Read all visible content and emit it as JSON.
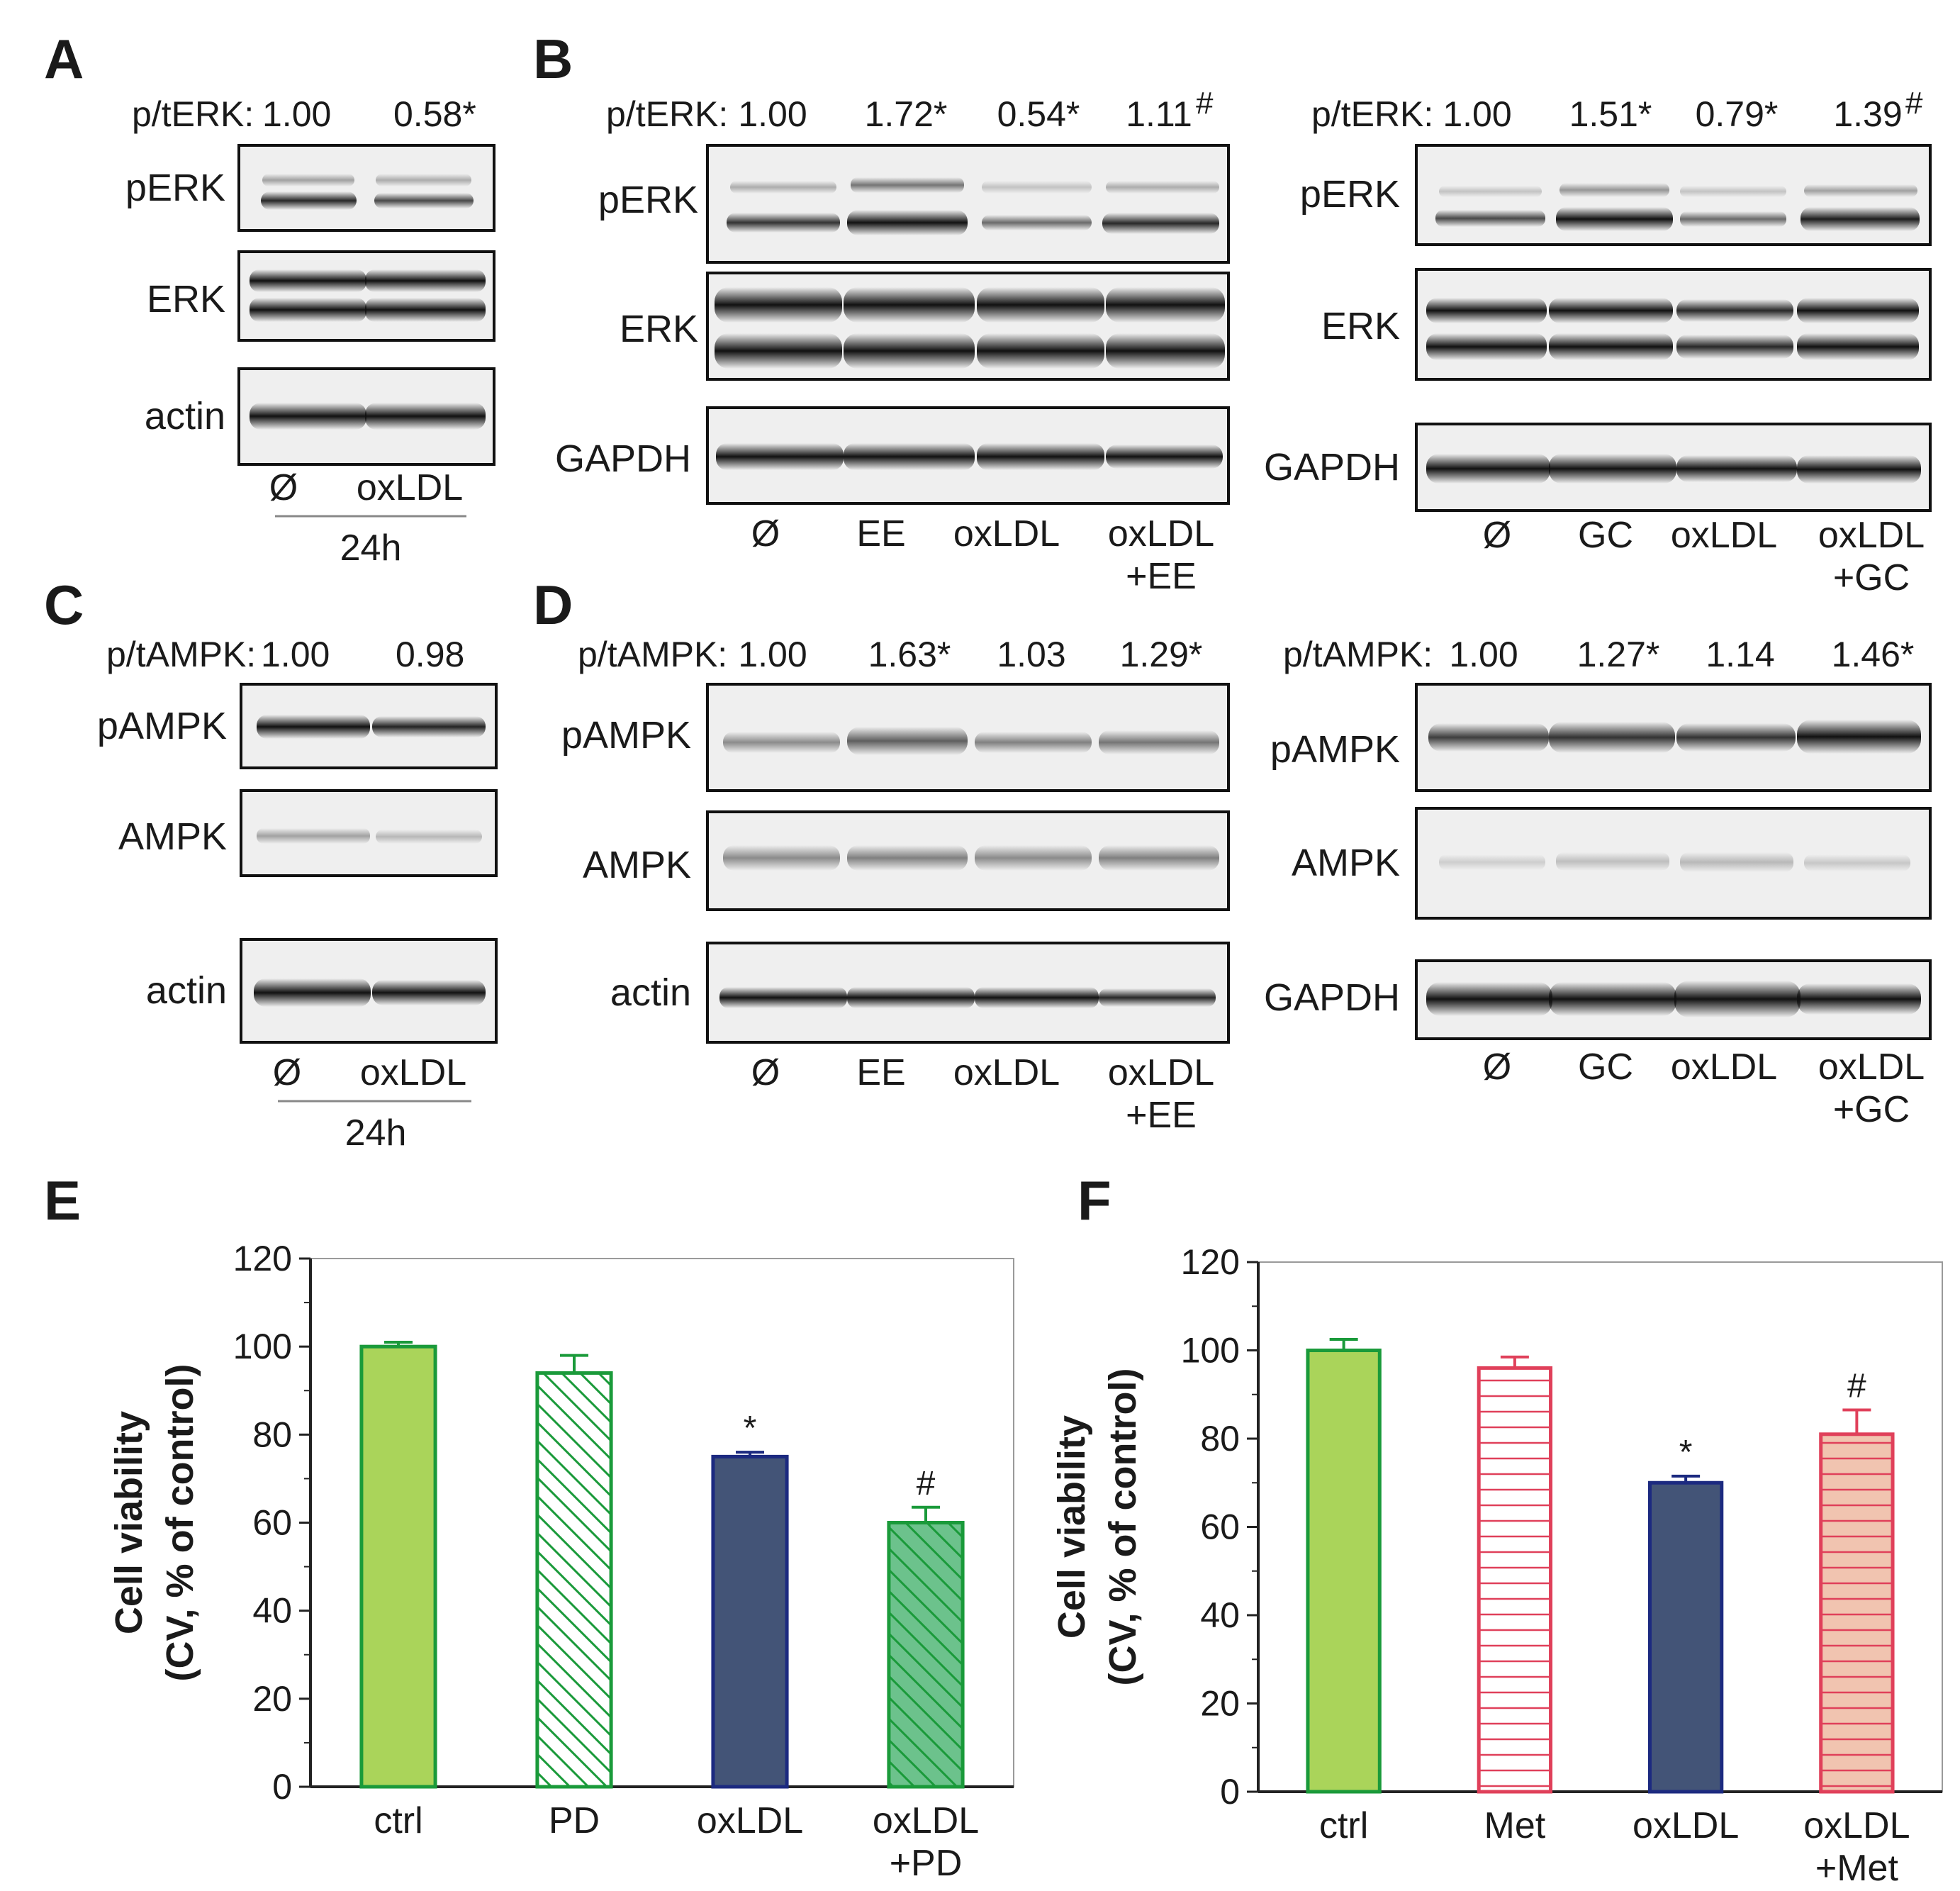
{
  "panel_letters": {
    "A": "A",
    "B": "B",
    "C": "C",
    "D": "D",
    "E": "E",
    "F": "F"
  },
  "blots": {
    "A": {
      "ratio_label": "p/tERK:",
      "ratios": [
        "1.00",
        "0.58*"
      ],
      "rows": [
        "pERK",
        "ERK",
        "actin"
      ],
      "lanes": [
        "Ø",
        "oxLDL"
      ],
      "time": "24h"
    },
    "B_left": {
      "ratio_label": "p/tERK:",
      "ratios": [
        "1.00",
        "1.72*",
        "0.54*",
        "1.11"
      ],
      "rows": [
        "pERK",
        "ERK",
        "GAPDH"
      ],
      "lanes": [
        "Ø",
        "EE",
        "oxLDL",
        "oxLDL",
        "+EE"
      ]
    },
    "B_right": {
      "ratio_label": "p/tERK:",
      "ratios": [
        "1.00",
        "1.51*",
        "0.79*",
        "1.39"
      ],
      "rows": [
        "pERK",
        "ERK",
        "GAPDH"
      ],
      "lanes": [
        "Ø",
        "GC",
        "oxLDL",
        "oxLDL",
        "+GC"
      ]
    },
    "C": {
      "ratio_label": "p/tAMPK:",
      "ratios": [
        "1.00",
        "0.98"
      ],
      "rows": [
        "pAMPK",
        "AMPK",
        "actin"
      ],
      "lanes": [
        "Ø",
        "oxLDL"
      ],
      "time": "24h"
    },
    "D_left": {
      "ratio_label": "p/tAMPK:",
      "ratios": [
        "1.00",
        "1.63*",
        "1.03",
        "1.29*"
      ],
      "rows": [
        "pAMPK",
        "AMPK",
        "actin"
      ],
      "lanes": [
        "Ø",
        "EE",
        "oxLDL",
        "oxLDL",
        "+EE"
      ]
    },
    "D_right": {
      "ratio_label": "p/tAMPK:",
      "ratios": [
        "1.00",
        "1.27*",
        "1.14",
        "1.46*"
      ],
      "rows": [
        "pAMPK",
        "AMPK",
        "GAPDH"
      ],
      "lanes": [
        "Ø",
        "GC",
        "oxLDL",
        "oxLDL",
        "+GC"
      ]
    },
    "hash": "#"
  },
  "chart_data": [
    {
      "panel": "E",
      "type": "bar",
      "categories": [
        "ctrl",
        "PD",
        "oxLDL",
        "oxLDL\n+PD"
      ],
      "values": [
        100,
        94,
        75,
        60
      ],
      "errors": [
        1,
        4,
        1,
        3.5
      ],
      "annotations": [
        "",
        "",
        "*",
        "#"
      ],
      "ylabel": "Cell viability\n(CV, % of control)",
      "ylim": [
        0,
        120
      ],
      "yticks": [
        0,
        20,
        40,
        60,
        80,
        100,
        120
      ],
      "bar_fills": [
        "#aad45a",
        "none",
        "#435477",
        "#6cc28c"
      ],
      "bar_strokes": [
        "#1a9a3a",
        "#1a9a3a",
        "#1c2a80",
        "#1a9a3a"
      ],
      "bar_patterns": [
        "solid",
        "hatch-diagonal",
        "solid",
        "hatch-diagonal"
      ]
    },
    {
      "panel": "F",
      "type": "bar",
      "categories": [
        "ctrl",
        "Met",
        "oxLDL",
        "oxLDL\n+Met"
      ],
      "values": [
        100,
        96,
        70,
        81
      ],
      "errors": [
        2.5,
        2.5,
        1.5,
        5.5
      ],
      "annotations": [
        "",
        "",
        "*",
        "#"
      ],
      "ylabel": "Cell viability\n(CV, % of control)",
      "ylim": [
        0,
        120
      ],
      "yticks": [
        0,
        20,
        40,
        60,
        80,
        100,
        120
      ],
      "bar_fills": [
        "#aad45a",
        "none",
        "#435477",
        "#f1c4b0"
      ],
      "bar_strokes": [
        "#1a9a3a",
        "#e0405a",
        "#1c2a80",
        "#e0405a"
      ],
      "bar_patterns": [
        "solid",
        "hatch-horizontal",
        "solid",
        "hatch-horizontal"
      ]
    }
  ]
}
